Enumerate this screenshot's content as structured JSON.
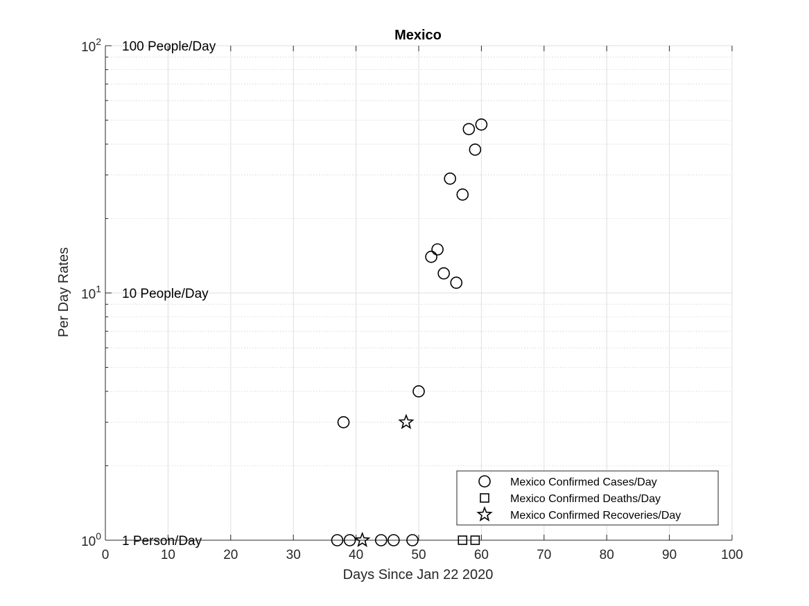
{
  "chart_data": {
    "type": "scatter",
    "title": "Mexico",
    "xlabel": "Days Since Jan 22 2020",
    "ylabel": "Per Day Rates",
    "xlim": [
      0,
      100
    ],
    "ylim": [
      1,
      100
    ],
    "yscale": "log",
    "grid": true,
    "minor_grid": true,
    "legend_position": "bottom-right",
    "x_ticks": [
      0,
      10,
      20,
      30,
      40,
      50,
      60,
      70,
      80,
      90,
      100
    ],
    "y_ticks": [
      {
        "value": 1,
        "base": "10",
        "exp": "0"
      },
      {
        "value": 10,
        "base": "10",
        "exp": "1"
      },
      {
        "value": 100,
        "base": "10",
        "exp": "2"
      }
    ],
    "reference_labels": [
      {
        "value": 100,
        "text": "100 People/Day"
      },
      {
        "value": 10,
        "text": "10 People/Day"
      },
      {
        "value": 1,
        "text": "1 Person/Day"
      }
    ],
    "series": [
      {
        "name": "Mexico Confirmed Cases/Day",
        "marker": "circle",
        "x": [
          37,
          38,
          39,
          44,
          46,
          49,
          50,
          52,
          53,
          54,
          55,
          56,
          57,
          58,
          59,
          60
        ],
        "y": [
          1,
          3,
          1,
          1,
          1,
          1,
          4,
          14,
          15,
          12,
          29,
          11,
          25,
          46,
          38,
          48
        ]
      },
      {
        "name": "Mexico Confirmed Deaths/Day",
        "marker": "square",
        "x": [
          57,
          59
        ],
        "y": [
          1,
          1
        ]
      },
      {
        "name": "Mexico Confirmed Recoveries/Day",
        "marker": "star",
        "x": [
          41,
          48
        ],
        "y": [
          1,
          3
        ]
      }
    ]
  }
}
